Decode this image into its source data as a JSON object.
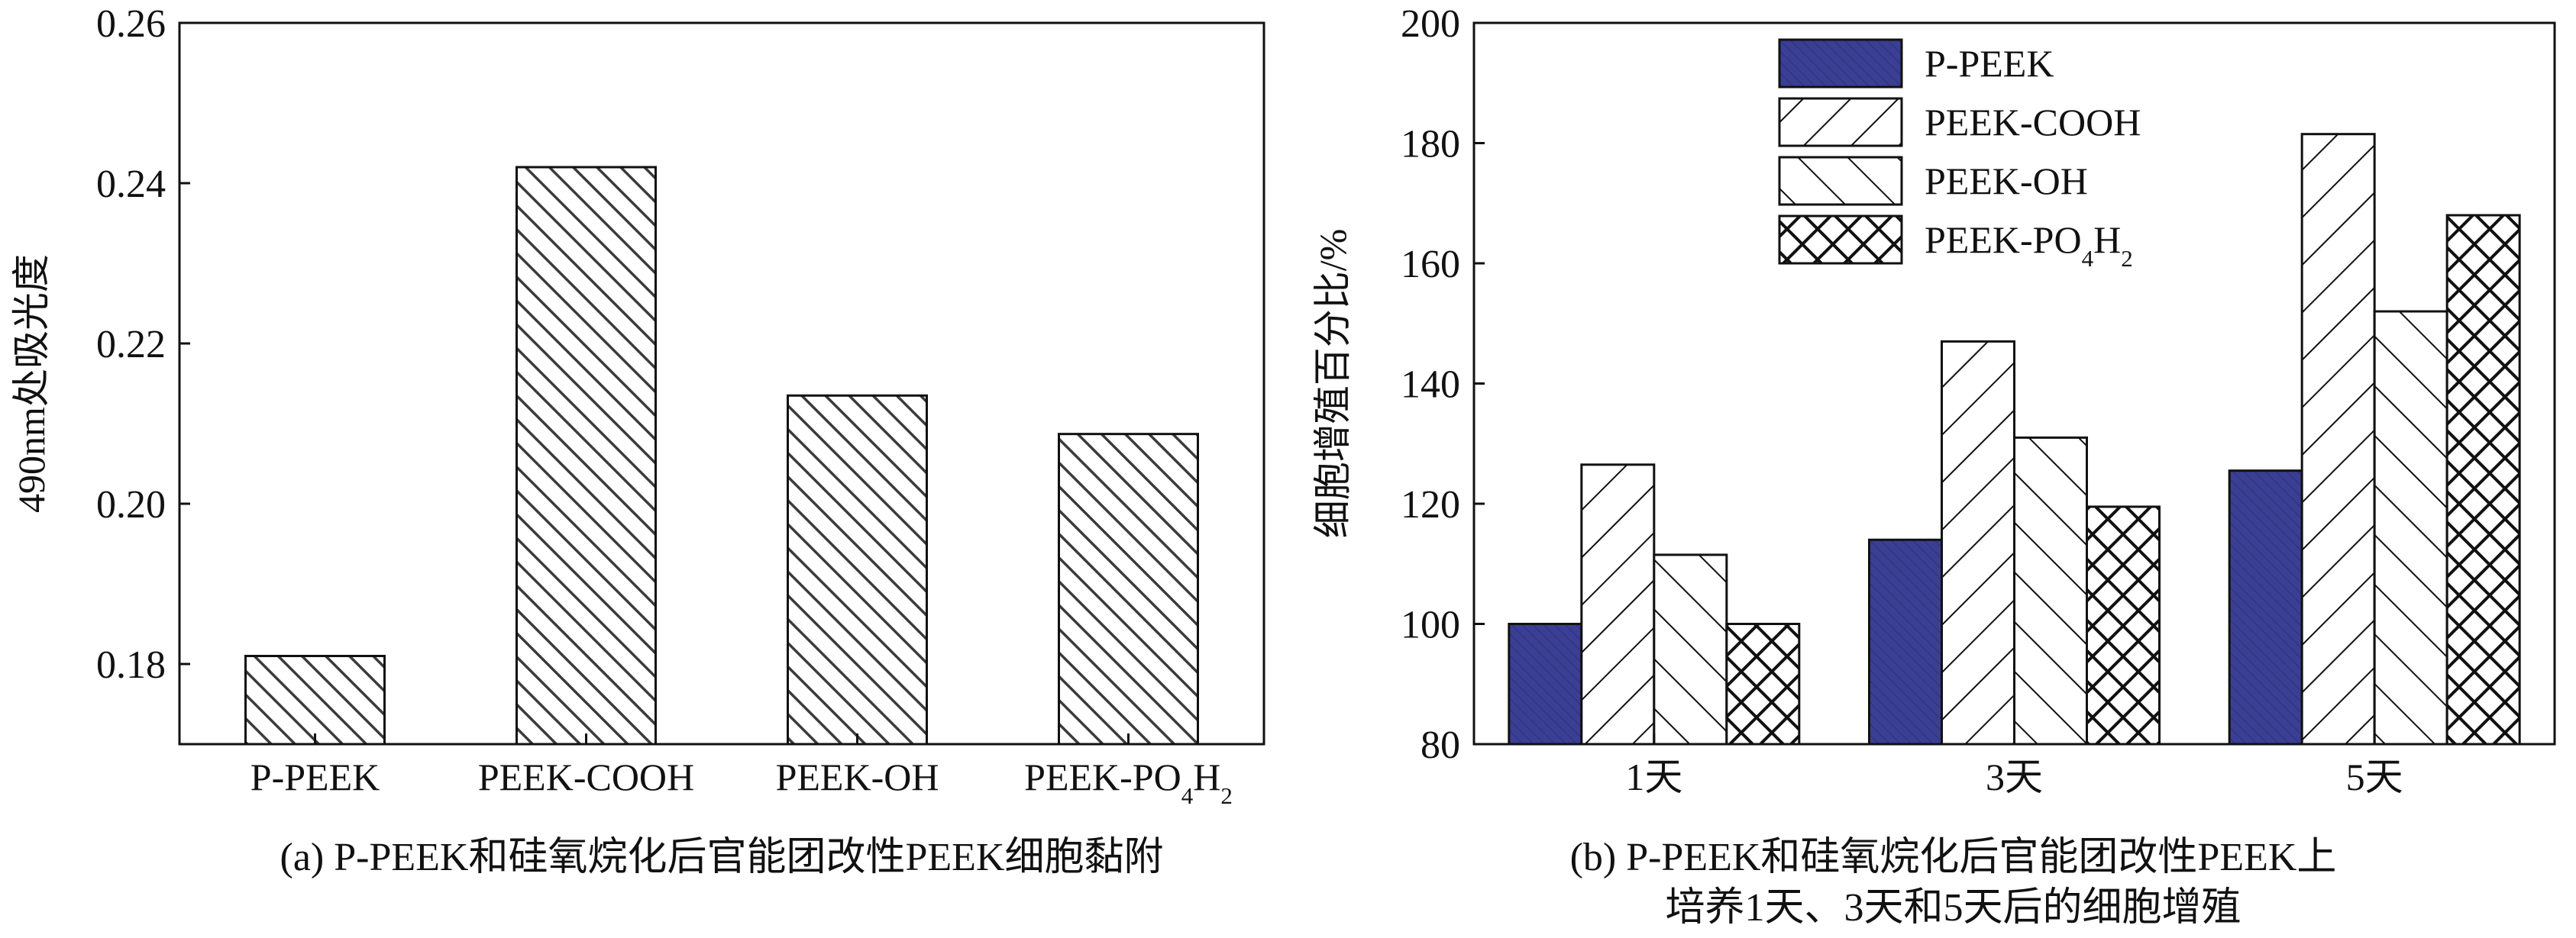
{
  "chart_data": [
    {
      "type": "bar",
      "categories": [
        "P-PEEK",
        "PEEK-COOH",
        "PEEK-OH",
        "PEEK-PO4H2"
      ],
      "category_labels": [
        {
          "main": "P-PEEK"
        },
        {
          "main": "PEEK-COOH"
        },
        {
          "main": "PEEK-OH"
        },
        {
          "main": "PEEK-PO",
          "sub1": "4",
          "mid": "H",
          "sub2": "2"
        }
      ],
      "values": [
        0.181,
        0.242,
        0.2135,
        0.2087
      ],
      "ylabel": "490nm处吸光度",
      "ylim": [
        0.17,
        0.26
      ],
      "yticks": [
        "0.18",
        "0.20",
        "0.22",
        "0.24",
        "0.26"
      ],
      "ytick_values": [
        0.18,
        0.2,
        0.22,
        0.24,
        0.26
      ],
      "caption": "(a) P-PEEK和硅氧烷化后官能团改性PEEK细胞黏附",
      "bar_pattern": "hatch-backslash-dense"
    },
    {
      "type": "bar",
      "categories": [
        "1天",
        "3天",
        "5天"
      ],
      "series": [
        {
          "name": "P-PEEK",
          "legend": {
            "main": "P-PEEK"
          },
          "values": [
            100,
            114,
            125.5
          ],
          "pattern": "solid-navy"
        },
        {
          "name": "PEEK-COOH",
          "legend": {
            "main": "PEEK-COOH"
          },
          "values": [
            126.5,
            147,
            181.5
          ],
          "pattern": "hatch-slash"
        },
        {
          "name": "PEEK-OH",
          "legend": {
            "main": "PEEK-OH"
          },
          "values": [
            111.5,
            131,
            152
          ],
          "pattern": "hatch-backslash"
        },
        {
          "name": "PEEK-PO4H2",
          "legend": {
            "main": "PEEK-PO",
            "sub1": "4",
            "mid": "H",
            "sub2": "2"
          },
          "values": [
            100,
            119.5,
            168
          ],
          "pattern": "crosshatch"
        }
      ],
      "ylabel": "细胞增殖百分比/%",
      "ylim": [
        80,
        200
      ],
      "yticks": [
        "80",
        "100",
        "120",
        "140",
        "160",
        "180",
        "200"
      ],
      "ytick_values": [
        80,
        100,
        120,
        140,
        160,
        180,
        200
      ],
      "legend_position": "top-center",
      "caption_lines": [
        "(b) P-PEEK和硅氧烷化后官能团改性PEEK上",
        "培养1天、3天和5天后的细胞增殖"
      ],
      "colors": {
        "navy": "#3a3f93"
      }
    }
  ]
}
